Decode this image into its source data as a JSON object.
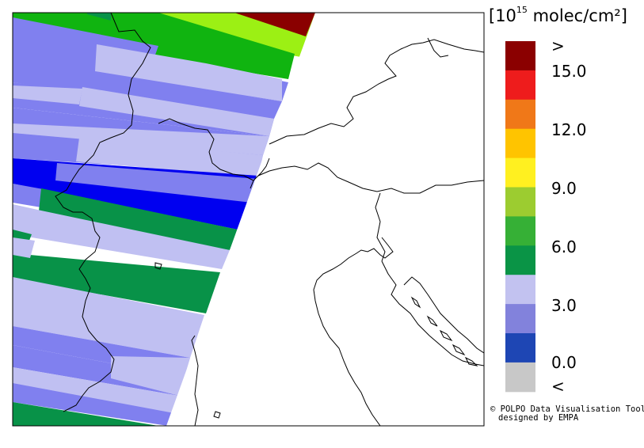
{
  "legend": {
    "unit_prefix": "[10",
    "unit_exponent": "15",
    "unit_suffix": " molec/cm²]",
    "tick_labels": [
      ">",
      "15.0",
      "12.0",
      "9.0",
      "6.0",
      "3.0",
      "0.0",
      "<"
    ],
    "color_bins": [
      "#8b0000",
      "#ee1c1c",
      "#f07818",
      "#ffc400",
      "#fff020",
      "#9ccc30",
      "#36b036",
      "#0a9446",
      "#c2c2f0",
      "#8282dc",
      "#1e46b4",
      "#c8c8c8"
    ]
  },
  "credit": {
    "symbol": "©",
    "line1": "POLPO Data Visualisation Tool",
    "line2": "designed by EMPA"
  },
  "colors": {
    "very_low": "#0000f0",
    "low": "#8080ef",
    "mid_low": "#c0c0f2",
    "mid": "#089248",
    "mid_high": "#10b410",
    "high": "#9cf014",
    "highest": "#8a0000"
  }
}
